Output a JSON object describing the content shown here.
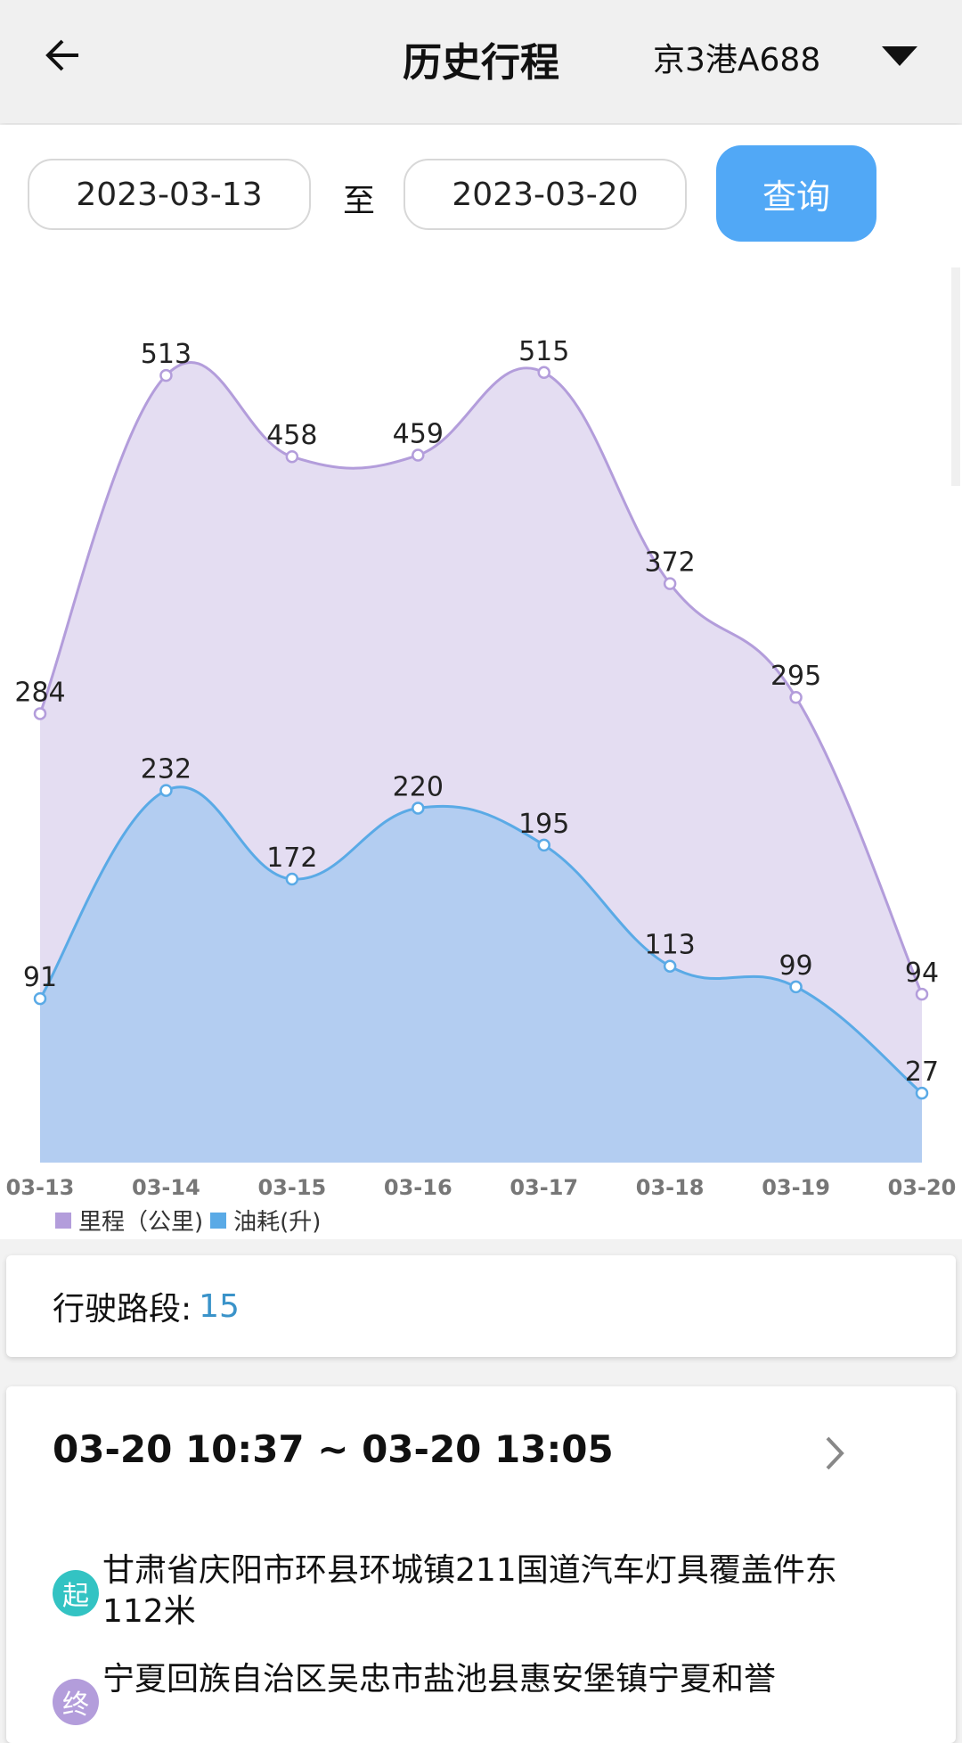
{
  "header": {
    "title": "历史行程",
    "plate": "京3港A688"
  },
  "query": {
    "start_date": "2023-03-13",
    "separator": "至",
    "end_date": "2023-03-20",
    "button": "查询",
    "button_color": "#51a8f6"
  },
  "chart_data": {
    "type": "area",
    "categories": [
      "03-13",
      "03-14",
      "03-15",
      "03-16",
      "03-17",
      "03-18",
      "03-19",
      "03-20"
    ],
    "series": [
      {
        "name": "里程（公里)",
        "values": [
          284,
          513,
          458,
          459,
          515,
          372,
          295,
          94
        ],
        "color": "#b39ddb",
        "fill": "#e4ddf2"
      },
      {
        "name": "油耗(升)",
        "values": [
          91,
          232,
          172,
          220,
          195,
          113,
          99,
          27
        ],
        "color": "#5aaae6",
        "fill": "#b3cdf1"
      }
    ],
    "ylim": [
      -20,
      600
    ],
    "grid": false,
    "legend": "bottom-left",
    "smooth": true,
    "data_labels": true
  },
  "segments": {
    "label": "行驶路段:",
    "value": "15"
  },
  "trip": {
    "title": "03-20 10:37 ~ 03-20 13:05",
    "start": {
      "badge": "起",
      "badge_color": "#33c3c3",
      "address": "甘肃省庆阳市环县环城镇211国道汽车灯具覆盖件东112米"
    },
    "end": {
      "badge": "终",
      "badge_color": "#b39ddb",
      "address": "宁夏回族自治区吴忠市盐池县惠安堡镇宁夏和誉"
    }
  }
}
